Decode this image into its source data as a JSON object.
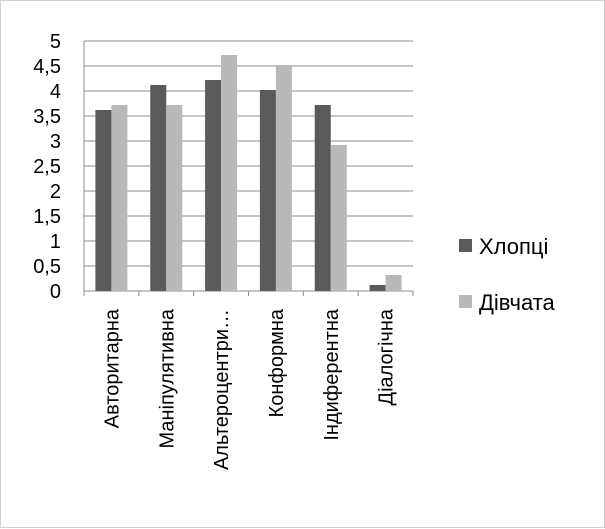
{
  "chart_data": {
    "type": "bar",
    "title": "",
    "xlabel": "",
    "ylabel": "",
    "categories": [
      "Авторитарна",
      "Маніпулятивна",
      "Альтероцентри…",
      "Конформна",
      "Індиферентна",
      "Діалогічна"
    ],
    "series": [
      {
        "name": "Хлопці",
        "color": "#5a5a5a",
        "values": [
          3.62,
          4.12,
          4.22,
          4.02,
          3.72,
          0.12
        ]
      },
      {
        "name": "Дівчата",
        "color": "#b9b9b9",
        "values": [
          3.72,
          3.72,
          4.72,
          4.52,
          2.92,
          0.32
        ]
      }
    ],
    "ylim": [
      0,
      5
    ],
    "yticks": [
      "0",
      "0,5",
      "1",
      "1,5",
      "2",
      "2,5",
      "3",
      "3,5",
      "4",
      "4,5",
      "5"
    ],
    "grid": true,
    "legend_position": "right"
  }
}
